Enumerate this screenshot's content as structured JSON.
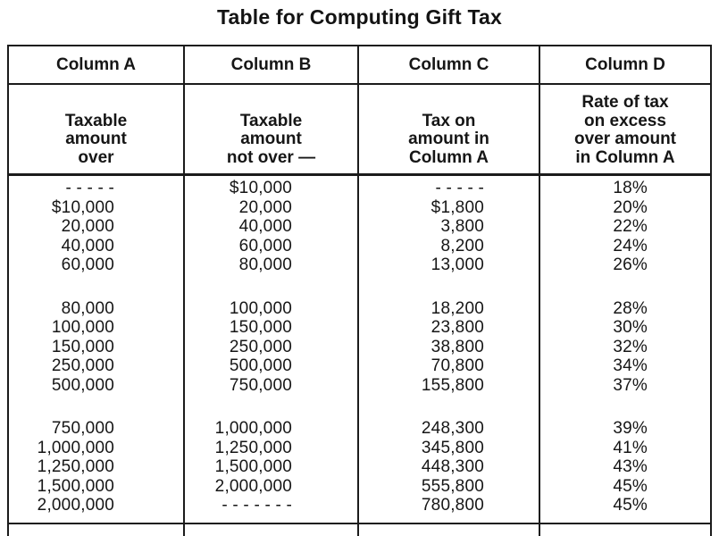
{
  "title": "Table for Computing Gift Tax",
  "table": {
    "columns": [
      {
        "name": "Column A",
        "description": "Taxable\namount\nover"
      },
      {
        "name": "Column B",
        "description": "Taxable\namount\nnot over —"
      },
      {
        "name": "Column C",
        "description": "Tax on\namount in\nColumn A"
      },
      {
        "name": "Column D",
        "description": "Rate of tax\non excess\nover amount\nin Column A"
      }
    ],
    "row_groups": [
      {
        "rows": [
          [
            "- - - - -",
            "$10,000",
            "- - - - -",
            "18%"
          ],
          [
            "$10,000",
            "20,000",
            "$1,800",
            "20%"
          ],
          [
            "20,000",
            "40,000",
            "3,800",
            "22%"
          ],
          [
            "40,000",
            "60,000",
            "8,200",
            "24%"
          ],
          [
            "60,000",
            "80,000",
            "13,000",
            "26%"
          ]
        ]
      },
      {
        "rows": [
          [
            "80,000",
            "100,000",
            "18,200",
            "28%"
          ],
          [
            "100,000",
            "150,000",
            "23,800",
            "30%"
          ],
          [
            "150,000",
            "250,000",
            "38,800",
            "32%"
          ],
          [
            "250,000",
            "500,000",
            "70,800",
            "34%"
          ],
          [
            "500,000",
            "750,000",
            "155,800",
            "37%"
          ]
        ]
      },
      {
        "rows": [
          [
            "750,000",
            "1,000,000",
            "248,300",
            "39%"
          ],
          [
            "1,000,000",
            "1,250,000",
            "345,800",
            "41%"
          ],
          [
            "1,250,000",
            "1,500,000",
            "448,300",
            "43%"
          ],
          [
            "1,500,000",
            "2,000,000",
            "555,800",
            "45%"
          ],
          [
            "2,000,000",
            "- - - - - - -",
            "780,800",
            "45%"
          ]
        ]
      }
    ]
  },
  "colors": {
    "text": "#161616",
    "border": "#1b1b1b",
    "background": "#ffffff"
  }
}
